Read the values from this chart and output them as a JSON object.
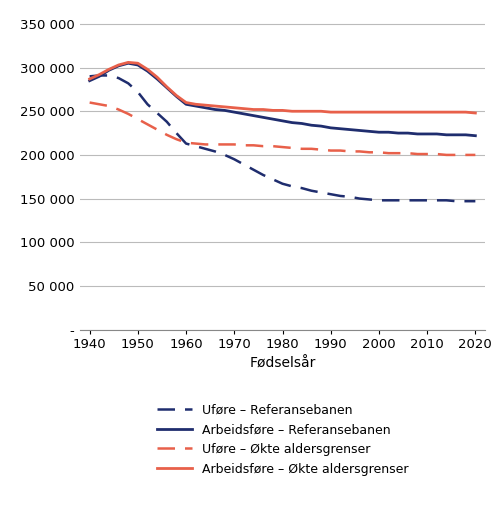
{
  "years": [
    1940,
    1942,
    1944,
    1946,
    1948,
    1950,
    1952,
    1954,
    1956,
    1958,
    1960,
    1962,
    1964,
    1966,
    1968,
    1970,
    1972,
    1974,
    1976,
    1978,
    1980,
    1982,
    1984,
    1986,
    1988,
    1990,
    1992,
    1994,
    1996,
    1998,
    2000,
    2002,
    2004,
    2006,
    2008,
    2010,
    2012,
    2014,
    2016,
    2018,
    2020
  ],
  "ufor_ref": [
    290000,
    291000,
    291000,
    288000,
    282000,
    272000,
    258000,
    248000,
    238000,
    225000,
    213000,
    210000,
    207000,
    204000,
    200000,
    195000,
    189000,
    183000,
    177000,
    172000,
    167000,
    164000,
    162000,
    159000,
    157000,
    155000,
    153000,
    152000,
    150000,
    149000,
    148000,
    148000,
    148000,
    148000,
    148000,
    148000,
    148000,
    148000,
    147000,
    147000,
    147000
  ],
  "arbf_ref": [
    285000,
    290000,
    297000,
    302000,
    305000,
    303000,
    296000,
    287000,
    277000,
    267000,
    258000,
    256000,
    254000,
    252000,
    251000,
    249000,
    247000,
    245000,
    243000,
    241000,
    239000,
    237000,
    236000,
    234000,
    233000,
    231000,
    230000,
    229000,
    228000,
    227000,
    226000,
    226000,
    225000,
    225000,
    224000,
    224000,
    224000,
    223000,
    223000,
    223000,
    222000
  ],
  "ufor_okt": [
    260000,
    258000,
    256000,
    252000,
    247000,
    241000,
    235000,
    229000,
    223000,
    218000,
    214000,
    213000,
    212000,
    212000,
    212000,
    212000,
    211000,
    211000,
    210000,
    210000,
    209000,
    208000,
    207000,
    207000,
    206000,
    205000,
    205000,
    204000,
    204000,
    203000,
    203000,
    202000,
    202000,
    202000,
    201000,
    201000,
    201000,
    200000,
    200000,
    200000,
    200000
  ],
  "arbf_okt": [
    287000,
    292000,
    298000,
    303000,
    306000,
    305000,
    298000,
    289000,
    278000,
    268000,
    260000,
    258000,
    257000,
    256000,
    255000,
    254000,
    253000,
    252000,
    252000,
    251000,
    251000,
    250000,
    250000,
    250000,
    250000,
    249000,
    249000,
    249000,
    249000,
    249000,
    249000,
    249000,
    249000,
    249000,
    249000,
    249000,
    249000,
    249000,
    249000,
    249000,
    248000
  ],
  "ylim": [
    0,
    360000
  ],
  "yticks": [
    0,
    50000,
    100000,
    150000,
    200000,
    250000,
    300000,
    350000
  ],
  "xticks": [
    1940,
    1950,
    1960,
    1970,
    1980,
    1990,
    2000,
    2010,
    2020
  ],
  "xlabel": "Fødselsår",
  "dark_navy": "#1f2d6e",
  "salmon_red": "#e8604a",
  "legend_labels": [
    "Uføre – Referansebanen",
    "Arbeidsføre – Referansebanen",
    "Uføre – Økte aldersgrenser",
    "Arbeidsføre – Økte aldersgrenser"
  ],
  "background_color": "#ffffff",
  "grid_color": "#bbbbbb",
  "zero_label": "-"
}
